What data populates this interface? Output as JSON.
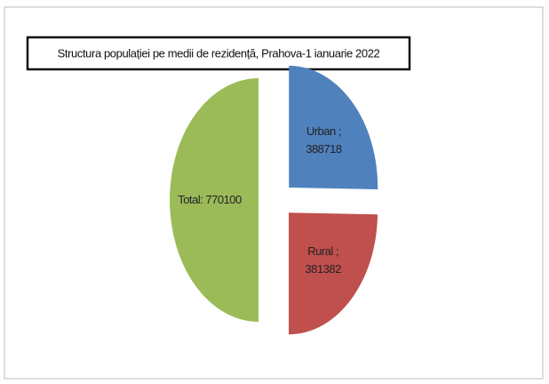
{
  "chart_data": {
    "type": "pie",
    "title": "Structura populației pe medii de rezidență, Prahova-1 ianuarie 2022",
    "values": [
      388718,
      381382,
      770100
    ],
    "value_labels": [
      "Urban ; 388718",
      "Rural ; 381382",
      "Total: 770100"
    ],
    "colors": [
      "#4f81bd",
      "#c0504d",
      "#9bbb59"
    ]
  }
}
